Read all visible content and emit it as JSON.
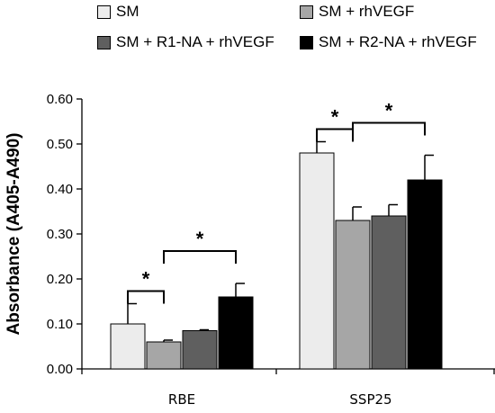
{
  "chart_data": {
    "type": "bar",
    "title": "",
    "xlabel": "",
    "ylabel": "Absorbance (A405-A490)",
    "ylim": [
      0,
      0.6
    ],
    "yticks": [
      "0.00",
      "0.10",
      "0.20",
      "0.30",
      "0.40",
      "0.50",
      "0.60"
    ],
    "categories": [
      "RBE",
      "SSP25"
    ],
    "legend_position": "top",
    "grid": false,
    "series": [
      {
        "name": "SM",
        "color": "#ececec",
        "values": [
          0.1,
          0.48
        ],
        "errors": [
          0.045,
          0.025
        ]
      },
      {
        "name": "SM + rhVEGF",
        "color": "#a6a6a6",
        "values": [
          0.06,
          0.33
        ],
        "errors": [
          0.004,
          0.03
        ]
      },
      {
        "name": "SM + R1-NA + rhVEGF",
        "color": "#5f5f5f",
        "values": [
          0.085,
          0.34
        ],
        "errors": [
          0.002,
          0.025
        ]
      },
      {
        "name": "SM + R2-NA + rhVEGF",
        "color": "#000000",
        "values": [
          0.16,
          0.42
        ],
        "errors": [
          0.03,
          0.055
        ]
      }
    ],
    "significance": [
      {
        "category": 0,
        "from": 0,
        "to": 1,
        "label": "*"
      },
      {
        "category": 0,
        "from": 1,
        "to": 3,
        "label": "*"
      },
      {
        "category": 1,
        "from": 0,
        "to": 1,
        "label": "*"
      },
      {
        "category": 1,
        "from": 1,
        "to": 3,
        "label": "*"
      }
    ]
  }
}
